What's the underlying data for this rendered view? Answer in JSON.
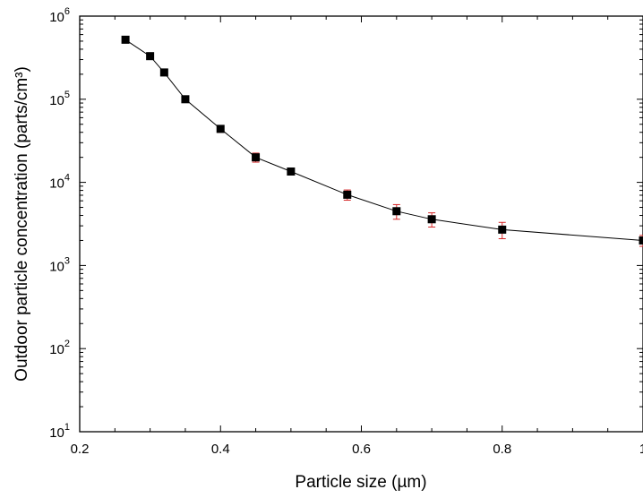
{
  "chart_data": {
    "type": "line",
    "title": "",
    "xlabel": "Particle size (µm)",
    "ylabel": "Outdoor particle concentration (parts/cm³)",
    "x_scale": "linear",
    "y_scale": "log",
    "xlim": [
      0.2,
      1.0
    ],
    "ylim": [
      10,
      1000000
    ],
    "x_ticks": [
      0.2,
      0.4,
      0.6,
      0.8,
      1
    ],
    "x_tick_labels": [
      "0.2",
      "0.4",
      "0.6",
      "0.8",
      "1"
    ],
    "y_tick_labels": [
      {
        "base": "10",
        "exp": "1"
      },
      {
        "base": "10",
        "exp": "2"
      },
      {
        "base": "10",
        "exp": "3"
      },
      {
        "base": "10",
        "exp": "4"
      },
      {
        "base": "10",
        "exp": "5"
      },
      {
        "base": "10",
        "exp": "6"
      }
    ],
    "grid": false,
    "series": [
      {
        "marker": "square",
        "marker_color": "#000000",
        "line_color": "#000000",
        "error_bar_color": "#d62728",
        "x": [
          0.265,
          0.3,
          0.32,
          0.35,
          0.4,
          0.45,
          0.5,
          0.58,
          0.65,
          0.7,
          0.8,
          1.0
        ],
        "y": [
          520000,
          330000,
          210000,
          100000,
          44000,
          20000,
          13500,
          7100,
          4500,
          3600,
          2700,
          2000
        ],
        "err": [
          40000,
          25000,
          15000,
          8000,
          4000,
          2500,
          1200,
          1000,
          900,
          700,
          600,
          300
        ]
      }
    ]
  }
}
